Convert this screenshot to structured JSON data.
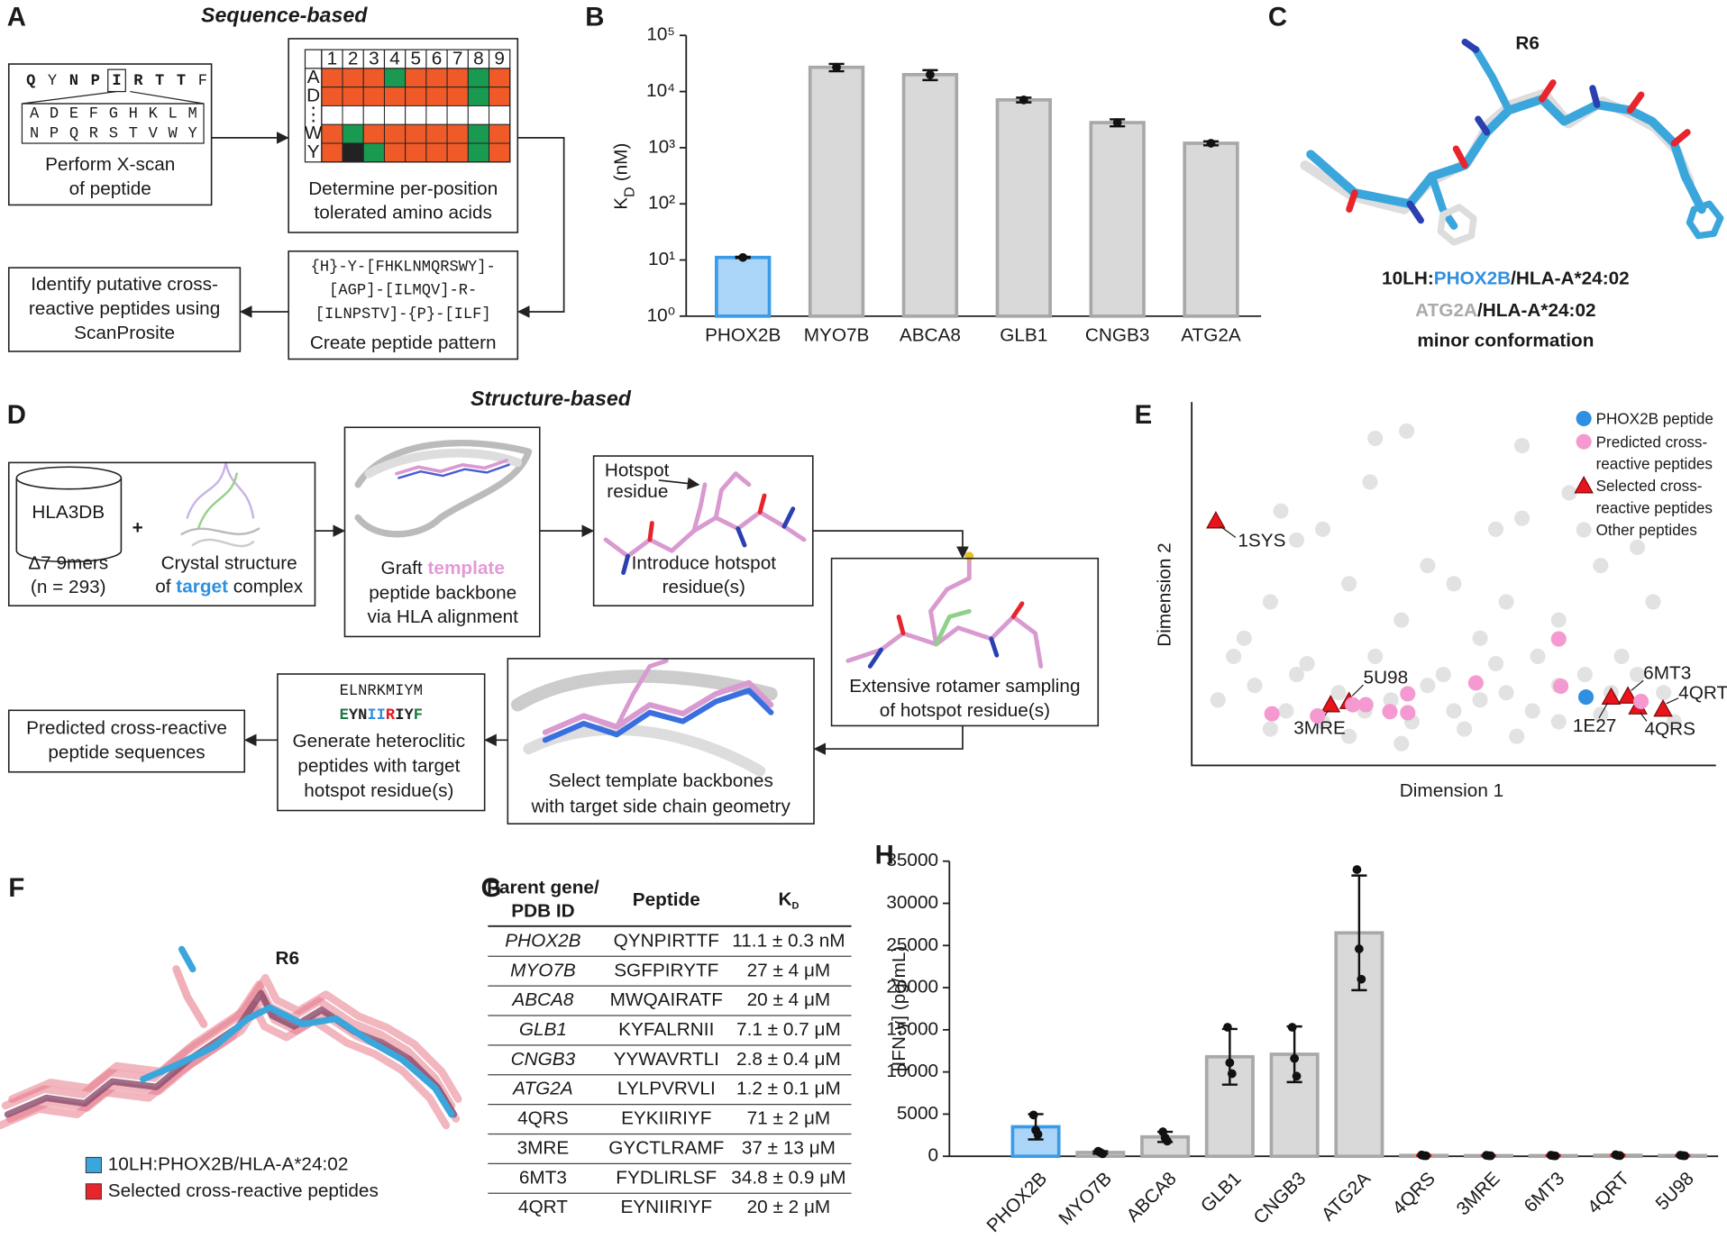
{
  "panel_labels": {
    "a": "A",
    "b": "B",
    "c": "C",
    "d": "D",
    "e": "E",
    "f": "F",
    "g": "G",
    "h": "H"
  },
  "panel_a": {
    "title": "Sequence-based",
    "peptide": [
      "Q",
      "Y",
      "N",
      "P",
      "I",
      "R",
      "T",
      "T",
      "F"
    ],
    "scan_letters": [
      "ADEFGHKLM",
      "NPQRSTVWY"
    ],
    "scan_caption": [
      "Perform X-scan",
      "of peptide"
    ],
    "grid_positions": [
      1,
      2,
      3,
      4,
      5,
      6,
      7,
      8,
      9
    ],
    "grid_residues": [
      "A",
      "D",
      "⋮",
      "W",
      "Y"
    ],
    "grid_caption": [
      "Determine per-position",
      "tolerated amino acids"
    ],
    "pattern": [
      "{H}-Y-[FHKLNMQRSWY]-",
      "[AGP]-[ILMQV]-R-",
      "[ILNPSTV]-{P}-[ILF]"
    ],
    "pattern_caption": "Create peptide pattern",
    "identify": [
      "Identify putative cross-",
      "reactive peptides using",
      "ScanProsite"
    ]
  },
  "panel_b": {
    "chart_data": {
      "type": "bar",
      "log": true,
      "ylabel": {
        "main": "K",
        "sub": "D",
        "unit": "(nM)"
      },
      "categories": [
        "PHOX2B",
        "MYO7B",
        "ABCA8",
        "GLB1",
        "CNGB3",
        "ATG2A"
      ],
      "values": [
        11.1,
        27000,
        20000,
        7100,
        2800,
        1200
      ],
      "errors": [
        0.3,
        4000,
        4000,
        700,
        400,
        100
      ],
      "colors": [
        "#aad4f8",
        "#d9d9d9",
        "#d9d9d9",
        "#d9d9d9",
        "#d9d9d9",
        "#d9d9d9"
      ],
      "edge_colors": [
        "#3a9be8",
        "#a8a8a8",
        "#a8a8a8",
        "#a8a8a8",
        "#a8a8a8",
        "#a8a8a8"
      ],
      "ylim": [
        1,
        100000
      ],
      "yticks": [
        {
          "value": 1,
          "label": "10⁰"
        },
        {
          "value": 10,
          "label": "10¹"
        },
        {
          "value": 100,
          "label": "10²"
        },
        {
          "value": 1000,
          "label": "10³"
        },
        {
          "value": 10000,
          "label": "10⁴"
        },
        {
          "value": 100000,
          "label": "10⁵"
        }
      ]
    }
  },
  "panel_c": {
    "residue": "R6",
    "complex_1": [
      "10LH:",
      "PHOX2B",
      "/HLA-A*24:02"
    ],
    "complex_2": [
      "ATG2A",
      "/HLA-A*24:02"
    ],
    "note": "minor conformation"
  },
  "panel_d": {
    "title": "Structure-based",
    "database": "HLA3DB",
    "plus": "+",
    "database_caption": [
      "Δ7 9mers",
      "(n = 293)"
    ],
    "crystal_caption": [
      "Crystal structure",
      "of ",
      "target",
      " complex"
    ],
    "graft": [
      "Graft ",
      "template",
      "peptide backbone",
      "via HLA alignment"
    ],
    "hotspot_label": [
      "Hotspot",
      "residue"
    ],
    "introduce": [
      "Introduce hotspot",
      "residue(s)"
    ],
    "rotamer": [
      "Extensive rotamer sampling",
      "of hotspot residue(s)"
    ],
    "select": [
      "Select template backbones",
      "with target side chain geometry"
    ],
    "sequence_1": "ELNRKMIYM",
    "sequence_2": [
      "E",
      "YN",
      "II",
      "R",
      "IY",
      "F"
    ],
    "generate": [
      "Generate heteroclitic",
      "peptides with target",
      "hotspot residue(s)"
    ],
    "predicted": [
      "Predicted cross-reactive",
      "peptide sequences"
    ]
  },
  "panel_e": {
    "chart_data": {
      "type": "scatter",
      "xlabel": "Dimension 1",
      "ylabel": "Dimension 2",
      "xlim": [
        0,
        100
      ],
      "ylim": [
        0,
        100
      ],
      "series": [
        {
          "name": "PHOX2B peptide",
          "color": "#2f8fe0",
          "marker": "circle",
          "x": [
            75.2
          ],
          "y": [
            18.8
          ]
        },
        {
          "name": "Predicted cross-reactive peptides",
          "color": "#f49ad0",
          "marker": "circle",
          "x": [
            15.3,
            24.0,
            30.7,
            33.2,
            37.8,
            41.2,
            54.2,
            70.0,
            70.4,
            85.7,
            41.2
          ],
          "y": [
            14.2,
            13.6,
            16.7,
            16.7,
            14.8,
            19.7,
            22.7,
            34.8,
            21.8,
            17.6,
            14.5
          ]
        },
        {
          "name": "Selected cross-reactive peptides",
          "color": "#e8141c",
          "marker": "triangle",
          "labels": [
            "1SYS",
            "3MRE",
            "5U98",
            "1E27",
            "6MT3",
            "4QRS",
            "4QRT"
          ],
          "x": [
            4.6,
            26.5,
            30.0,
            80.0,
            83.2,
            85.1,
            89.9
          ],
          "y": [
            67.3,
            16.7,
            17.6,
            18.8,
            19.1,
            16.1,
            15.5
          ]
        },
        {
          "name": "Other peptides",
          "color": "#cfcfcf",
          "marker": "circle",
          "x": [
            35,
            41,
            34,
            17,
            20,
            25,
            63,
            58,
            63,
            72,
            85,
            78,
            45,
            50,
            30,
            15,
            10,
            8,
            60,
            70,
            88,
            40,
            55,
            66,
            22,
            35,
            48,
            5,
            12,
            18,
            25,
            28,
            33,
            38,
            42,
            45,
            50,
            55,
            60,
            65,
            70,
            75,
            80,
            85,
            90,
            92,
            15,
            30,
            40,
            52,
            62,
            70,
            78,
            20,
            58,
            82
          ],
          "y": [
            90,
            92,
            78,
            70,
            62,
            65,
            68,
            65,
            88,
            75,
            60,
            55,
            55,
            50,
            50,
            45,
            35,
            30,
            45,
            40,
            45,
            40,
            35,
            30,
            28,
            30,
            25,
            18,
            22,
            15,
            12,
            20,
            15,
            18,
            12,
            22,
            15,
            18,
            20,
            15,
            22,
            25,
            20,
            25,
            20,
            12,
            10,
            8,
            6,
            10,
            8,
            12,
            14,
            25,
            28,
            30
          ]
        }
      ]
    }
  },
  "panel_f": {
    "residue": "R6",
    "legend": [
      {
        "name": "10LH:PHOX2B/HLA-A*24:02",
        "color": "#3aa6dc"
      },
      {
        "name": "Selected cross-reactive peptides",
        "color": "#e8242c"
      }
    ]
  },
  "panel_g": {
    "header": {
      "gene": [
        "Parent gene/",
        "PDB ID"
      ],
      "peptide": "Peptide",
      "kd": "K",
      "kd_sub": "D"
    },
    "highlight_color": "#2f8fe0",
    "rows": [
      [
        "PHOX2B",
        "QYNPIRTTF",
        "11.1 ± 0.3 nM"
      ],
      [
        "MYO7B",
        "SGFPIRYTF",
        "27 ± 4 μM"
      ],
      [
        "ABCA8",
        "MWQAIRATF",
        "20 ± 4 μM"
      ],
      [
        "GLB1",
        "KYFALRNII",
        "7.1 ± 0.7 μM"
      ],
      [
        "CNGB3",
        "YYWAVRTLI",
        "2.8 ± 0.4 μM"
      ],
      [
        "ATG2A",
        "LYLPVRVLI",
        "1.2 ± 0.1 μM"
      ],
      [
        "4QRS",
        "EYKIIRIYF",
        "71 ± 2 μM"
      ],
      [
        "3MRE",
        "GYCTLRAMF",
        "37 ± 13 μM"
      ],
      [
        "6MT3",
        "FYDLIRLSF",
        "34.8 ± 0.9 μM"
      ],
      [
        "4QRT",
        "EYNIIRIYF",
        "20 ± 2 μM"
      ]
    ]
  },
  "panel_h": {
    "chart_data": {
      "type": "bar",
      "ylabel": "[IFN-γ] (pg/mL)",
      "categories": [
        "PHOX2B",
        "MYO7B",
        "ABCA8",
        "GLB1",
        "CNGB3",
        "ATG2A",
        "4QRS",
        "3MRE",
        "6MT3",
        "4QRT",
        "5U98"
      ],
      "values": [
        3500,
        450,
        2300,
        11800,
        12100,
        26500,
        100,
        80,
        80,
        120,
        90
      ],
      "errors": [
        1500,
        150,
        600,
        3300,
        3300,
        6800,
        60,
        40,
        40,
        60,
        40
      ],
      "points": [
        [
          4900,
          3100,
          2600
        ],
        [
          600,
          450,
          300
        ],
        [
          2900,
          2200,
          1800
        ],
        [
          15300,
          11100,
          9800
        ],
        [
          15300,
          11600,
          9500
        ],
        [
          34000,
          24600,
          21000
        ],
        [
          150,
          80,
          60
        ],
        [
          110,
          70,
          60
        ],
        [
          120,
          70,
          50
        ],
        [
          180,
          100,
          80
        ],
        [
          130,
          80,
          60
        ]
      ],
      "colors": [
        "#aad4f8",
        "#d9d9d9",
        "#d9d9d9",
        "#d9d9d9",
        "#d9d9d9",
        "#d9d9d9",
        "#d9d9d9",
        "#d9d9d9",
        "#d9d9d9",
        "#d9d9d9",
        "#d9d9d9"
      ],
      "edge_colors": [
        "#3a9be8",
        "#a8a8a8",
        "#a8a8a8",
        "#a8a8a8",
        "#a8a8a8",
        "#a8a8a8",
        "#a8a8a8",
        "#a8a8a8",
        "#a8a8a8",
        "#a8a8a8",
        "#a8a8a8"
      ],
      "error_colors": [
        "#111111",
        "#111111",
        "#111111",
        "#111111",
        "#111111",
        "#111111",
        "#e8141c",
        "#e8141c",
        "#e8141c",
        "#e8141c",
        "#e8141c"
      ],
      "ylim": [
        0,
        35000
      ],
      "yticks": [
        0,
        5000,
        10000,
        15000,
        20000,
        25000,
        30000,
        35000
      ]
    }
  }
}
